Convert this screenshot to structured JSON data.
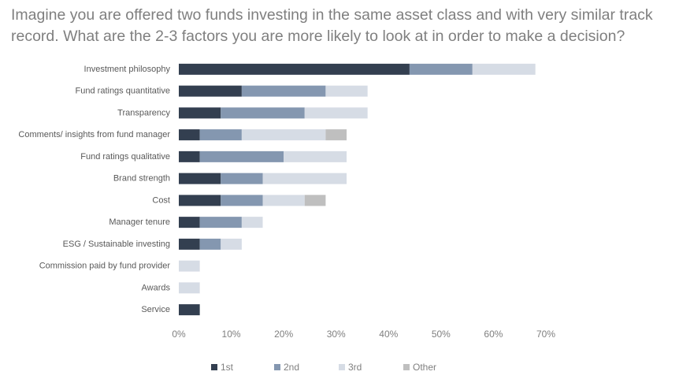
{
  "chart_data": {
    "type": "stacked-barh",
    "title": "Imagine you are offered two funds investing in the same asset class and with very similar track record. What are the 2-3 factors you are more likely to look at in order to make a decision?",
    "categories": [
      "Investment philosophy",
      "Fund ratings quantitative",
      "Transparency",
      "Comments/ insights from fund manager",
      "Fund ratings qualitative",
      "Brand strength",
      "Cost",
      "Manager tenure",
      "ESG / Sustainable investing",
      "Commission paid by fund provider",
      "Awards",
      "Service"
    ],
    "series": [
      {
        "name": "1st",
        "color": "#333f50",
        "values": [
          44,
          12,
          8,
          4,
          4,
          8,
          8,
          4,
          4,
          0,
          0,
          4
        ]
      },
      {
        "name": "2nd",
        "color": "#8497b0",
        "values": [
          12,
          16,
          16,
          8,
          16,
          8,
          8,
          8,
          4,
          0,
          0,
          0
        ]
      },
      {
        "name": "3rd",
        "color": "#d6dce5",
        "values": [
          12,
          8,
          12,
          16,
          12,
          16,
          8,
          4,
          4,
          4,
          4,
          0
        ]
      },
      {
        "name": "Other",
        "color": "#bfbfbf",
        "values": [
          0,
          0,
          0,
          4,
          0,
          0,
          4,
          0,
          0,
          0,
          0,
          0
        ]
      }
    ],
    "xlim": [
      0,
      70
    ],
    "xticks": [
      {
        "value": 0,
        "label": "0%"
      },
      {
        "value": 10,
        "label": "10%"
      },
      {
        "value": 20,
        "label": "20%"
      },
      {
        "value": 30,
        "label": "30%"
      },
      {
        "value": 40,
        "label": "40%"
      },
      {
        "value": 50,
        "label": "50%"
      },
      {
        "value": 60,
        "label": "60%"
      },
      {
        "value": 70,
        "label": "70%"
      }
    ],
    "grid": false,
    "legend": "bottom"
  }
}
